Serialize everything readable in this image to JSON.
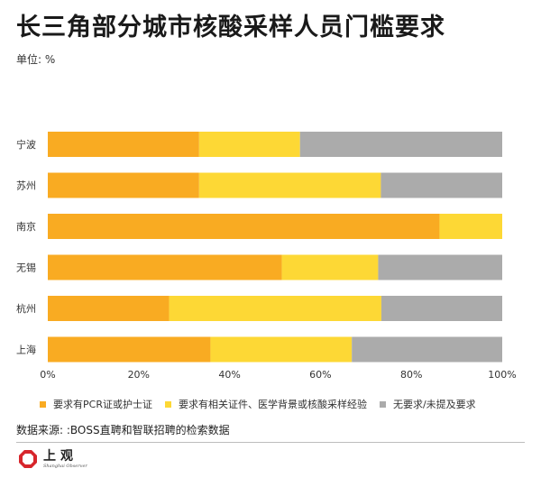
{
  "title": "长三角部分城市核酸采样人员门槛要求",
  "unit": "单位: %",
  "legend": [
    {
      "label": "要求有PCR证或护士证",
      "color": "#F9AB22"
    },
    {
      "label": "要求有相关证件、医学背景或核酸采样经验",
      "color": "#FDD835"
    },
    {
      "label": "无要求/未提及要求",
      "color": "#ABABAB"
    }
  ],
  "source": "数据来源: :BOSS直聘和智联招聘的检索数据",
  "logo": {
    "cn": "上观",
    "en": "Shanghai Observer",
    "brand_color": "#D7262C"
  },
  "chart_data": {
    "type": "bar",
    "orientation": "horizontal",
    "stacked": true,
    "categories": [
      "宁波",
      "苏州",
      "南京",
      "无锡",
      "杭州",
      "上海"
    ],
    "series": [
      {
        "name": "要求有PCR证或护士证",
        "color": "#F9AB22",
        "values": [
          33.3,
          33.3,
          86.2,
          51.5,
          26.7,
          35.8
        ]
      },
      {
        "name": "要求有相关证件、医学背景或核酸采样经验",
        "color": "#FDD835",
        "values": [
          22.2,
          40.0,
          13.8,
          21.2,
          46.7,
          31.1
        ]
      },
      {
        "name": "无要求/未提及要求",
        "color": "#ABABAB",
        "values": [
          44.5,
          26.7,
          0.0,
          27.3,
          26.6,
          33.1
        ]
      }
    ],
    "xticks": [
      "0%",
      "20%",
      "40%",
      "60%",
      "80%",
      "100%"
    ],
    "xlim": [
      0,
      100
    ],
    "grid": false,
    "legend_position": "bottom"
  }
}
